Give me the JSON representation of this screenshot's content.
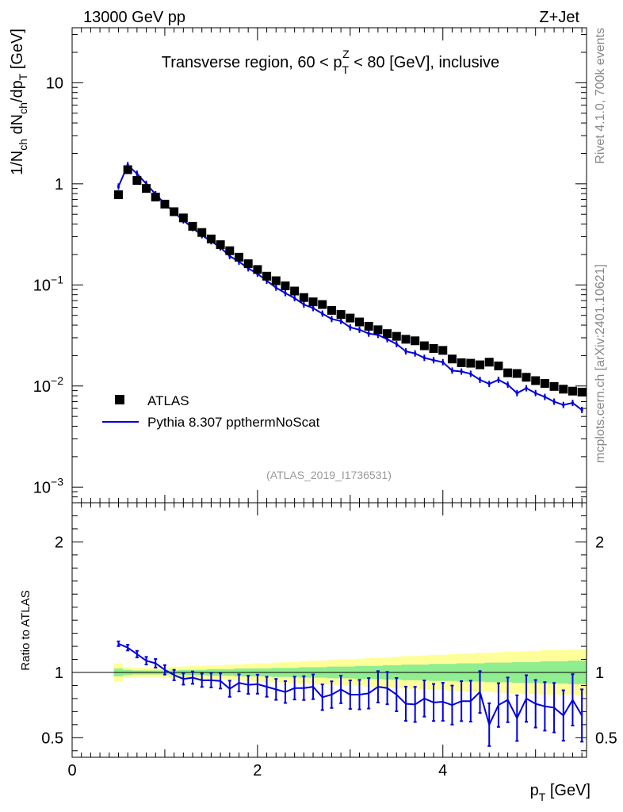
{
  "header": {
    "energy": "13000 GeV pp",
    "process": "Z+Jet",
    "watermark": "(ATLAS_2019_I1736531)",
    "side_top": "Rivet 4.1.0,  700k events",
    "side_bottom": "mcplots.cern.ch [arXiv:2401.10621]"
  },
  "chart_data": [
    {
      "type": "scatter",
      "title": "Transverse region, 60 < p_T^Z < 80 [GeV], inclusive",
      "title_parts": {
        "prefix": "Transverse region, 60 < p",
        "sub": "T",
        "sup": "Z",
        "suffix": " < 80 [GeV], inclusive"
      },
      "ylabel": "1/N_ch dN_ch/dp_T [GeV]",
      "ylabel_parts": {
        "a": "1/N",
        "a_sub": "ch",
        "b": " dN",
        "b_sub": "ch",
        "c": "/dp",
        "c_sub": "T",
        "d": " [GeV]"
      },
      "yscale": "log",
      "ylim": [
        0.0007,
        35
      ],
      "xlim": [
        0,
        5.55
      ],
      "ytick_labels": [
        {
          "base": "10",
          "exp": "−3",
          "value": 0.001
        },
        {
          "base": "10",
          "exp": "−2",
          "value": 0.01
        },
        {
          "base": "10",
          "exp": "−1",
          "value": 0.1
        },
        {
          "base": "1",
          "exp": "",
          "value": 1
        },
        {
          "base": "10",
          "exp": "",
          "value": 10
        }
      ],
      "legend": {
        "placement": "lower-left",
        "entries": [
          {
            "label": "ATLAS",
            "marker": "square",
            "color": "#000000"
          },
          {
            "label": "Pythia 8.307 ppthermNoScat",
            "marker": "line",
            "color": "#0000dd"
          }
        ]
      },
      "x": [
        0.5,
        0.6,
        0.7,
        0.8,
        0.9,
        1.0,
        1.1,
        1.2,
        1.3,
        1.4,
        1.5,
        1.6,
        1.7,
        1.8,
        1.9,
        2.0,
        2.1,
        2.2,
        2.3,
        2.4,
        2.5,
        2.6,
        2.7,
        2.8,
        2.9,
        3.0,
        3.1,
        3.2,
        3.3,
        3.4,
        3.5,
        3.6,
        3.7,
        3.8,
        3.9,
        4.0,
        4.1,
        4.2,
        4.3,
        4.4,
        4.5,
        4.6,
        4.7,
        4.8,
        4.9,
        5.0,
        5.1,
        5.2,
        5.3,
        5.4,
        5.5
      ],
      "series": [
        {
          "name": "ATLAS",
          "color": "#000000",
          "values": [
            0.78,
            1.38,
            1.08,
            0.9,
            0.74,
            0.63,
            0.53,
            0.46,
            0.38,
            0.33,
            0.285,
            0.25,
            0.218,
            0.188,
            0.162,
            0.142,
            0.122,
            0.11,
            0.098,
            0.087,
            0.075,
            0.068,
            0.064,
            0.056,
            0.051,
            0.047,
            0.043,
            0.039,
            0.036,
            0.033,
            0.031,
            0.029,
            0.028,
            0.025,
            0.0235,
            0.0225,
            0.0185,
            0.017,
            0.0168,
            0.0162,
            0.0172,
            0.0158,
            0.0135,
            0.0133,
            0.0122,
            0.0113,
            0.0106,
            0.0099,
            0.0093,
            0.0089,
            0.0087
          ]
        },
        {
          "name": "Pythia 8.307 ppthermNoScat",
          "color": "#0000dd",
          "values": [
            0.94,
            1.53,
            1.26,
            1.0,
            0.79,
            0.635,
            0.52,
            0.435,
            0.365,
            0.31,
            0.27,
            0.235,
            0.193,
            0.17,
            0.146,
            0.129,
            0.11,
            0.094,
            0.083,
            0.074,
            0.064,
            0.059,
            0.052,
            0.046,
            0.044,
            0.038,
            0.036,
            0.033,
            0.032,
            0.029,
            0.026,
            0.022,
            0.021,
            0.019,
            0.018,
            0.0172,
            0.0142,
            0.0139,
            0.0132,
            0.0115,
            0.0105,
            0.0115,
            0.0103,
            0.0085,
            0.0095,
            0.0085,
            0.0078,
            0.007,
            0.0065,
            0.0068,
            0.0058
          ]
        }
      ]
    },
    {
      "type": "line",
      "ylabel": "Ratio to ATLAS",
      "xlabel": "p_T [GeV]",
      "xlabel_parts": {
        "a": "p",
        "sub": "T",
        "b": " [GeV]"
      },
      "ylim": [
        0.35,
        2.3
      ],
      "xlim": [
        0,
        5.55
      ],
      "ytick_labels": [
        "0.5",
        "1",
        "2"
      ],
      "xtick_labels": [
        "0",
        "2",
        "4"
      ],
      "x": [
        0.5,
        0.6,
        0.7,
        0.8,
        0.9,
        1.0,
        1.1,
        1.2,
        1.3,
        1.4,
        1.5,
        1.6,
        1.7,
        1.8,
        1.9,
        2.0,
        2.1,
        2.2,
        2.3,
        2.4,
        2.5,
        2.6,
        2.7,
        2.8,
        2.9,
        3.0,
        3.1,
        3.2,
        3.3,
        3.4,
        3.5,
        3.6,
        3.7,
        3.8,
        3.9,
        4.0,
        4.1,
        4.2,
        4.3,
        4.4,
        4.5,
        4.6,
        4.7,
        4.8,
        4.9,
        5.0,
        5.1,
        5.2,
        5.3,
        5.4,
        5.5
      ],
      "series": [
        {
          "name": "Pythia / ATLAS",
          "color": "#0000dd",
          "values": [
            1.22,
            1.19,
            1.14,
            1.09,
            1.07,
            1.02,
            0.98,
            0.95,
            0.96,
            0.94,
            0.94,
            0.935,
            0.875,
            0.92,
            0.905,
            0.91,
            0.89,
            0.87,
            0.85,
            0.88,
            0.88,
            0.89,
            0.81,
            0.83,
            0.87,
            0.83,
            0.83,
            0.84,
            0.89,
            0.88,
            0.83,
            0.76,
            0.755,
            0.8,
            0.77,
            0.775,
            0.75,
            0.78,
            0.78,
            0.85,
            0.6,
            0.75,
            0.79,
            0.65,
            0.8,
            0.76,
            0.74,
            0.73,
            0.67,
            0.79,
            0.67
          ]
        },
        {
          "name": "ATLAS stat band",
          "color": "#90ee90",
          "lower": [
            0.97,
            0.98,
            0.985,
            0.985,
            0.985,
            0.985,
            0.985,
            0.98,
            0.98,
            0.98,
            0.975,
            0.975,
            0.975,
            0.97,
            0.97,
            0.97,
            0.97,
            0.965,
            0.965,
            0.965,
            0.96,
            0.96,
            0.96,
            0.955,
            0.955,
            0.955,
            0.95,
            0.95,
            0.95,
            0.945,
            0.945,
            0.94,
            0.94,
            0.94,
            0.935,
            0.935,
            0.935,
            0.93,
            0.93,
            0.93,
            0.925,
            0.925,
            0.925,
            0.92,
            0.92,
            0.92,
            0.915,
            0.915,
            0.915,
            0.91,
            0.91
          ],
          "upper": [
            1.03,
            1.02,
            1.015,
            1.015,
            1.015,
            1.015,
            1.015,
            1.02,
            1.02,
            1.02,
            1.025,
            1.025,
            1.025,
            1.03,
            1.03,
            1.03,
            1.03,
            1.035,
            1.035,
            1.035,
            1.04,
            1.04,
            1.04,
            1.045,
            1.045,
            1.045,
            1.05,
            1.05,
            1.05,
            1.055,
            1.055,
            1.06,
            1.06,
            1.06,
            1.065,
            1.065,
            1.065,
            1.07,
            1.07,
            1.07,
            1.075,
            1.075,
            1.075,
            1.08,
            1.08,
            1.08,
            1.085,
            1.085,
            1.085,
            1.09,
            1.09
          ]
        },
        {
          "name": "ATLAS total band",
          "color": "#ffff99",
          "lower": [
            0.93,
            0.96,
            0.965,
            0.965,
            0.965,
            0.96,
            0.955,
            0.955,
            0.95,
            0.95,
            0.945,
            0.945,
            0.94,
            0.94,
            0.935,
            0.93,
            0.93,
            0.925,
            0.92,
            0.92,
            0.915,
            0.91,
            0.91,
            0.905,
            0.9,
            0.9,
            0.895,
            0.89,
            0.89,
            0.885,
            0.88,
            0.875,
            0.875,
            0.87,
            0.865,
            0.865,
            0.86,
            0.855,
            0.855,
            0.85,
            0.85,
            0.845,
            0.84,
            0.84,
            0.835,
            0.835,
            0.83,
            0.83,
            0.83,
            0.825,
            0.825
          ],
          "upper": [
            1.07,
            1.04,
            1.035,
            1.035,
            1.035,
            1.04,
            1.045,
            1.045,
            1.05,
            1.05,
            1.055,
            1.055,
            1.06,
            1.06,
            1.065,
            1.07,
            1.07,
            1.075,
            1.08,
            1.08,
            1.085,
            1.09,
            1.09,
            1.095,
            1.1,
            1.1,
            1.105,
            1.11,
            1.11,
            1.115,
            1.12,
            1.125,
            1.125,
            1.13,
            1.135,
            1.135,
            1.14,
            1.145,
            1.145,
            1.15,
            1.15,
            1.155,
            1.16,
            1.16,
            1.165,
            1.165,
            1.17,
            1.17,
            1.17,
            1.175,
            1.175
          ]
        }
      ]
    }
  ]
}
